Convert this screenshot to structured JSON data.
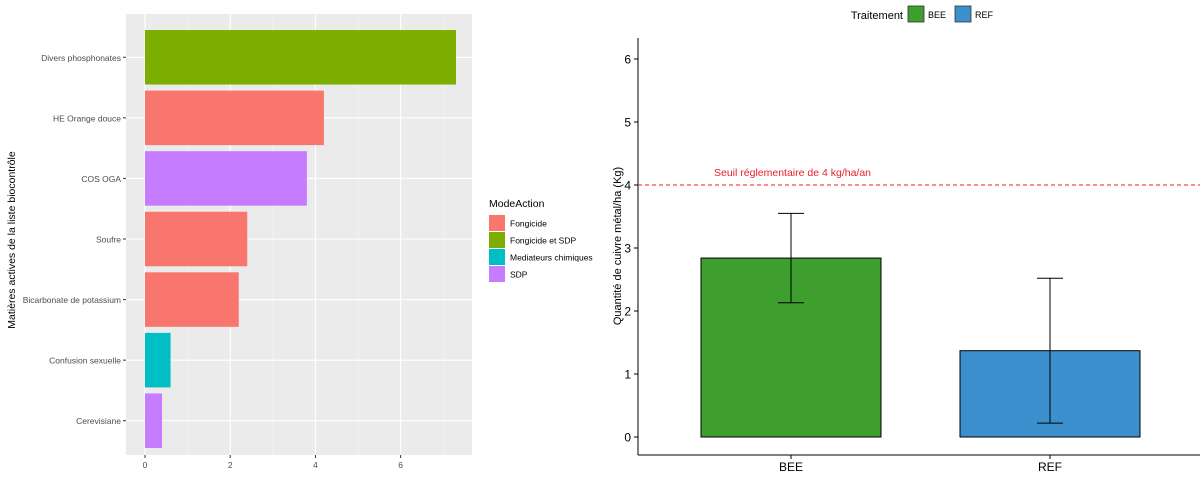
{
  "chart_data": [
    {
      "type": "bar",
      "orientation": "horizontal",
      "title": "",
      "xlabel": "",
      "ylabel": "Matières actives de la liste biocontrôle",
      "xlim": [
        0,
        7.3
      ],
      "xticks": [
        0,
        2,
        4,
        6
      ],
      "grid": true,
      "legend": {
        "title": "ModeAction",
        "placement": "right",
        "entries": [
          {
            "name": "Fongicide",
            "color": "#F8766D"
          },
          {
            "name": "Fongicide et SDP",
            "color": "#7CAE00"
          },
          {
            "name": "Mediateurs chimiques",
            "color": "#00BFC4"
          },
          {
            "name": "SDP",
            "color": "#C77CFF"
          }
        ]
      },
      "categories": [
        "Divers phosphonates",
        "HE Orange douce",
        "COS OGA",
        "Soufre",
        "Bicarbonate de potassium",
        "Confusion sexuelle",
        "Cerevisiane"
      ],
      "values": [
        7.3,
        4.2,
        3.8,
        2.4,
        2.2,
        0.6,
        0.4
      ],
      "groups": [
        "Fongicide et SDP",
        "Fongicide",
        "SDP",
        "Fongicide",
        "Fongicide",
        "Mediateurs chimiques",
        "SDP"
      ]
    },
    {
      "type": "bar",
      "title": "",
      "xlabel": "",
      "ylabel": "Quantité de cuivre métal/ha (Kg)",
      "ylim": [
        0,
        6.3
      ],
      "yticks": [
        0,
        1,
        2,
        3,
        4,
        5,
        6
      ],
      "grid": false,
      "legend": {
        "title": "Traitement",
        "placement": "top",
        "entries": [
          {
            "name": "BEE",
            "color": "#3E9E2E"
          },
          {
            "name": "REF",
            "color": "#3B8FCC"
          }
        ]
      },
      "categories": [
        "BEE",
        "REF"
      ],
      "values": [
        2.84,
        1.37
      ],
      "error_low": [
        2.13,
        0.22
      ],
      "error_high": [
        3.55,
        2.52
      ],
      "threshold": {
        "value": 4,
        "label": "Seuil réglementaire de 4 kg/ha/an",
        "color": "#E8202A"
      }
    }
  ]
}
